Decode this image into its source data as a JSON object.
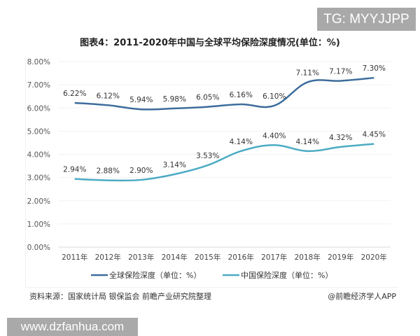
{
  "watermark_top": "TG: MYYJJPP",
  "watermark_bottom": "www.dzfanhua.com",
  "source": "资料来源：国家统计局 银保监会 前瞻产业研究院整理",
  "credit": "@前瞻经济学人APP",
  "chart_data": {
    "type": "line",
    "title": "图表4：2011-2020年中国与全球平均保险深度情况(单位：%)",
    "categories": [
      "2011年",
      "2012年",
      "2013年",
      "2014年",
      "2015年",
      "2016年",
      "2017年",
      "2018年",
      "2019年",
      "2020年"
    ],
    "yticks": [
      "0.00%",
      "1.00%",
      "2.00%",
      "3.00%",
      "4.00%",
      "5.00%",
      "6.00%",
      "7.00%",
      "8.00%"
    ],
    "ylim": [
      0,
      8
    ],
    "legend_position": "bottom",
    "series": [
      {
        "name": "全球保险深度（单位：%）",
        "color": "#3d6d9c",
        "values": [
          6.22,
          6.12,
          5.94,
          5.98,
          6.05,
          6.16,
          6.1,
          7.11,
          7.17,
          7.3
        ],
        "labels": [
          "6.22%",
          "6.12%",
          "5.94%",
          "5.98%",
          "6.05%",
          "6.16%",
          "6.10%",
          "7.11%",
          "7.17%",
          "7.30%"
        ]
      },
      {
        "name": "中国保险深度（单位：%）",
        "color": "#4cabc4",
        "values": [
          2.94,
          2.88,
          2.9,
          3.14,
          3.53,
          4.14,
          4.4,
          4.14,
          4.32,
          4.45
        ],
        "labels": [
          "2.94%",
          "2.88%",
          "2.90%",
          "3.14%",
          "3.53%",
          "4.14%",
          "4.40%",
          "4.14%",
          "4.32%",
          "4.45%"
        ]
      }
    ]
  }
}
